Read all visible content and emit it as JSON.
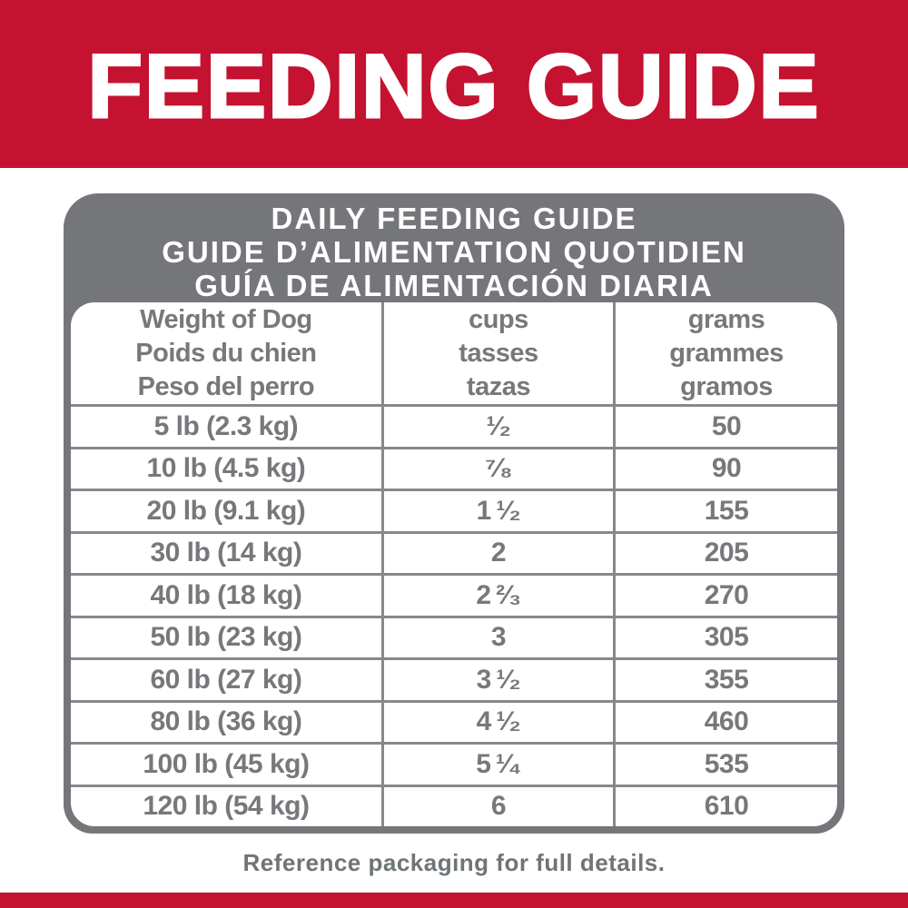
{
  "colors": {
    "brand_red": "#C41230",
    "panel_gray": "#75767A",
    "text_gray": "#77787B",
    "line_gray": "#87888B"
  },
  "banner": {
    "title": "FEEDING GUIDE"
  },
  "panel": {
    "heading_lines": [
      "DAILY FEEDING GUIDE",
      "GUIDE D’ALIMENTATION QUOTIDIEN",
      "GUÍA DE ALIMENTACIÓN DIARIA"
    ]
  },
  "table": {
    "headers": {
      "weight": [
        "Weight of Dog",
        "Poids du chien",
        "Peso del perro"
      ],
      "cups": [
        "cups",
        "tasses",
        "tazas"
      ],
      "grams": [
        "grams",
        "grammes",
        "gramos"
      ]
    },
    "rows": [
      {
        "weight": "5 lb (2.3 kg)",
        "cups": "¹⁄₂",
        "grams": "50"
      },
      {
        "weight": "10 lb (4.5 kg)",
        "cups": "⁷⁄₈",
        "grams": "90"
      },
      {
        "weight": "20 lb (9.1 kg)",
        "cups": "1 ¹⁄₂",
        "grams": "155"
      },
      {
        "weight": "30 lb (14 kg)",
        "cups": "2",
        "grams": "205"
      },
      {
        "weight": "40 lb (18 kg)",
        "cups": "2 ²⁄₃",
        "grams": "270"
      },
      {
        "weight": "50 lb (23 kg)",
        "cups": "3",
        "grams": "305"
      },
      {
        "weight": "60 lb (27 kg)",
        "cups": "3 ¹⁄₂",
        "grams": "355"
      },
      {
        "weight": "80 lb (36 kg)",
        "cups": "4 ¹⁄₂",
        "grams": "460"
      },
      {
        "weight": "100 lb (45 kg)",
        "cups": "5 ¹⁄₄",
        "grams": "535"
      },
      {
        "weight": "120 lb (54 kg)",
        "cups": "6",
        "grams": "610"
      }
    ]
  },
  "footnote": "Reference packaging for full details."
}
